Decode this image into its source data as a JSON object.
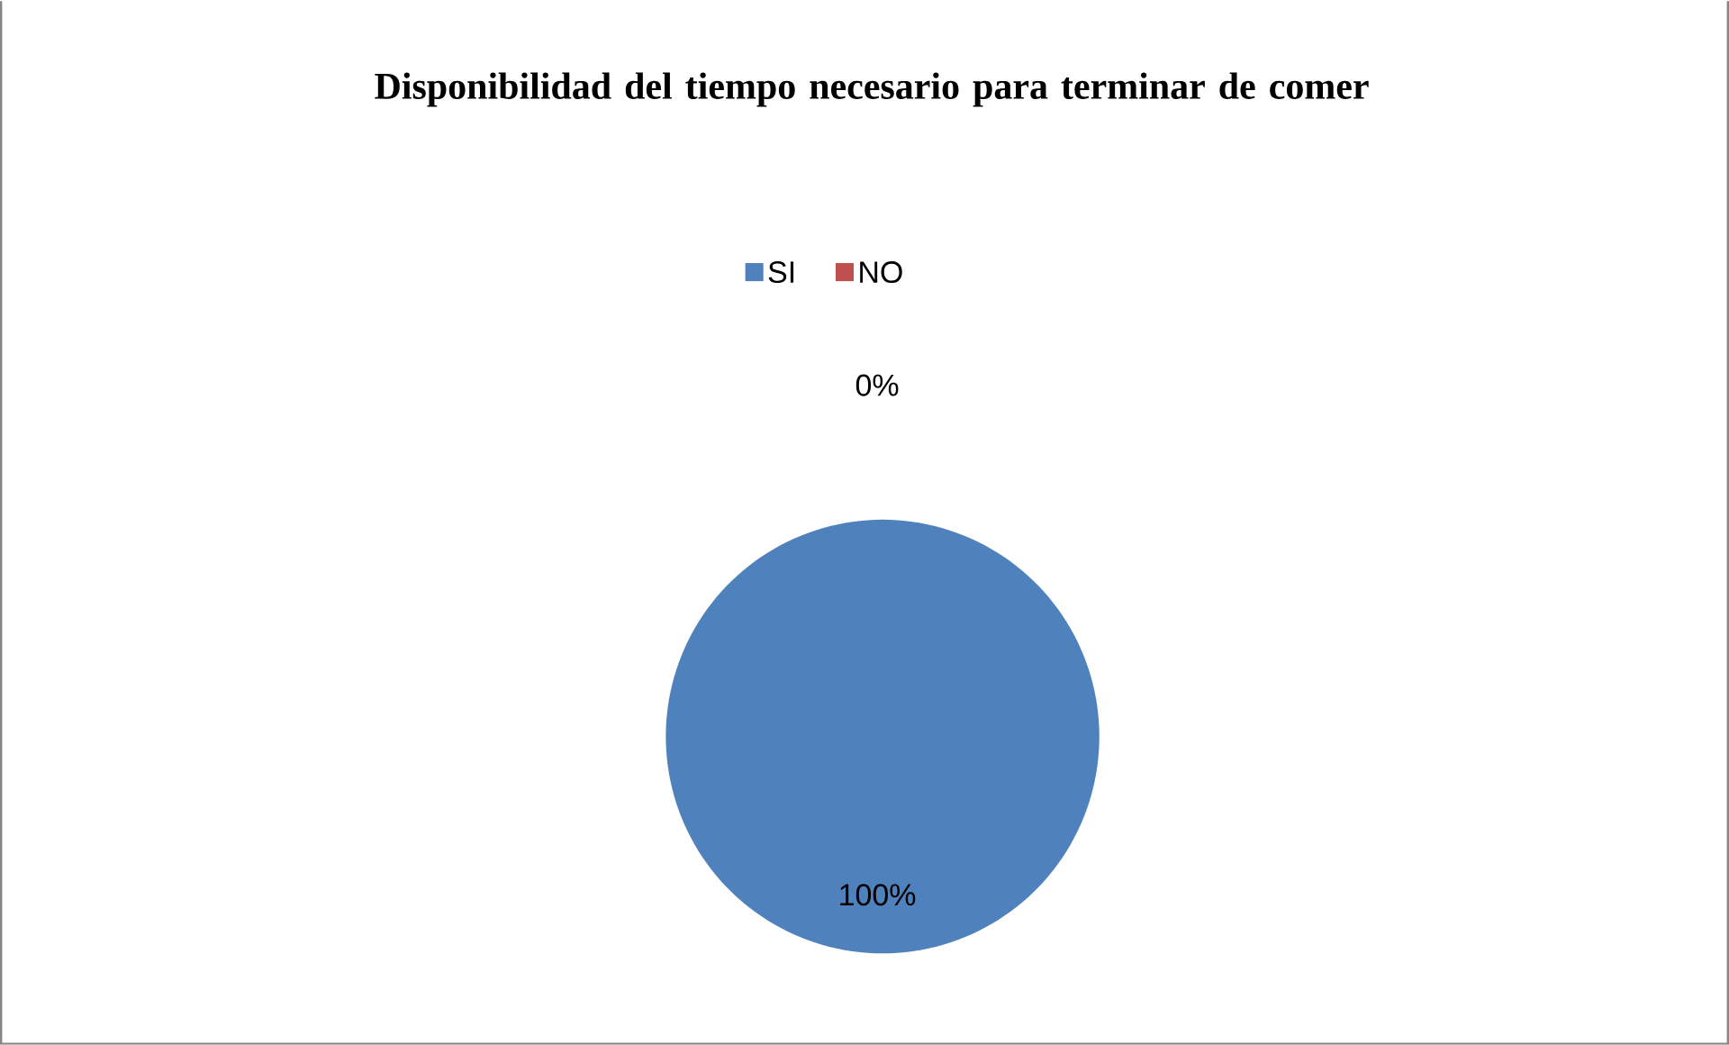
{
  "chart_data": {
    "type": "pie",
    "title": "Disponibilidad del tiempo necesario para terminar de comer",
    "categories": [
      "SI",
      "NO"
    ],
    "values": [
      100,
      0
    ],
    "colors": [
      "#4f81bd",
      "#c0504d"
    ],
    "value_labels": [
      "100%",
      "0%"
    ],
    "legend": "top"
  }
}
